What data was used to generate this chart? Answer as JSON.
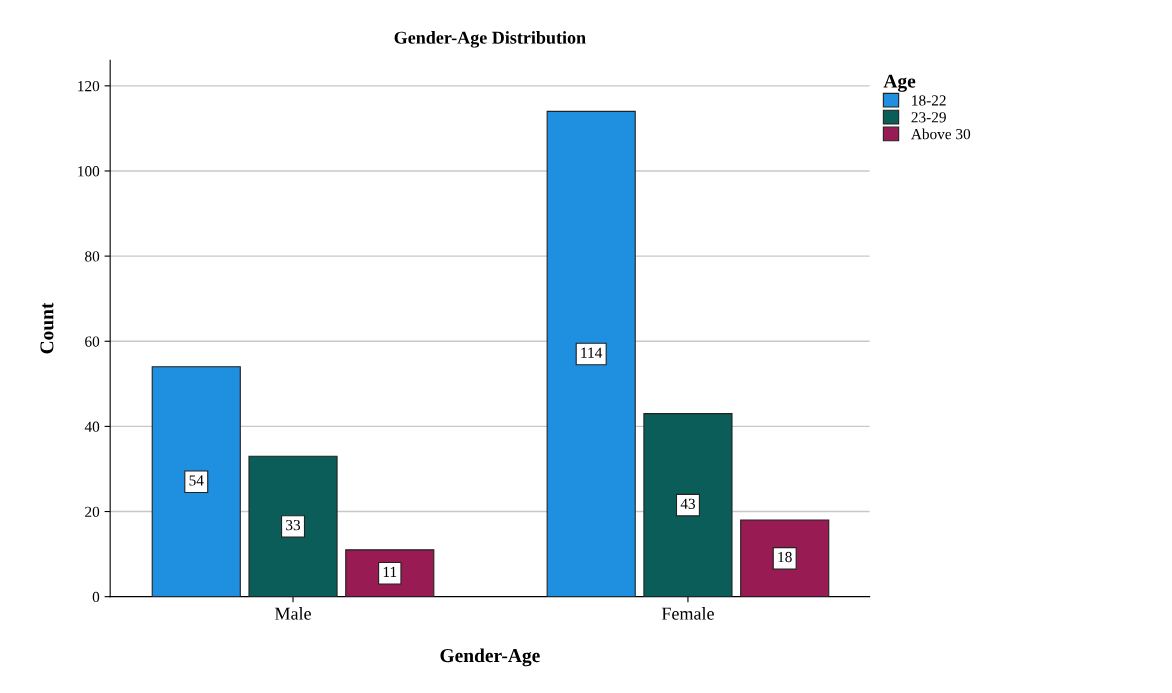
{
  "chart_data": {
    "type": "bar",
    "title": "Gender-Age Distribution",
    "xlabel": "Gender-Age",
    "ylabel": "Count",
    "legend_title": "Age",
    "categories": [
      "Male",
      "Female"
    ],
    "series": [
      {
        "name": "18-22",
        "color": "#1f8fdf",
        "values": [
          54,
          114
        ]
      },
      {
        "name": "23-29",
        "color": "#0b5d5a",
        "values": [
          33,
          43
        ]
      },
      {
        "name": "Above 30",
        "color": "#991b53",
        "values": [
          11,
          18
        ]
      }
    ],
    "ylim": [
      0,
      126
    ],
    "yticks": [
      0,
      20,
      40,
      60,
      80,
      100,
      120
    ],
    "grid": "y",
    "legend": "top right",
    "data_labels": true
  }
}
